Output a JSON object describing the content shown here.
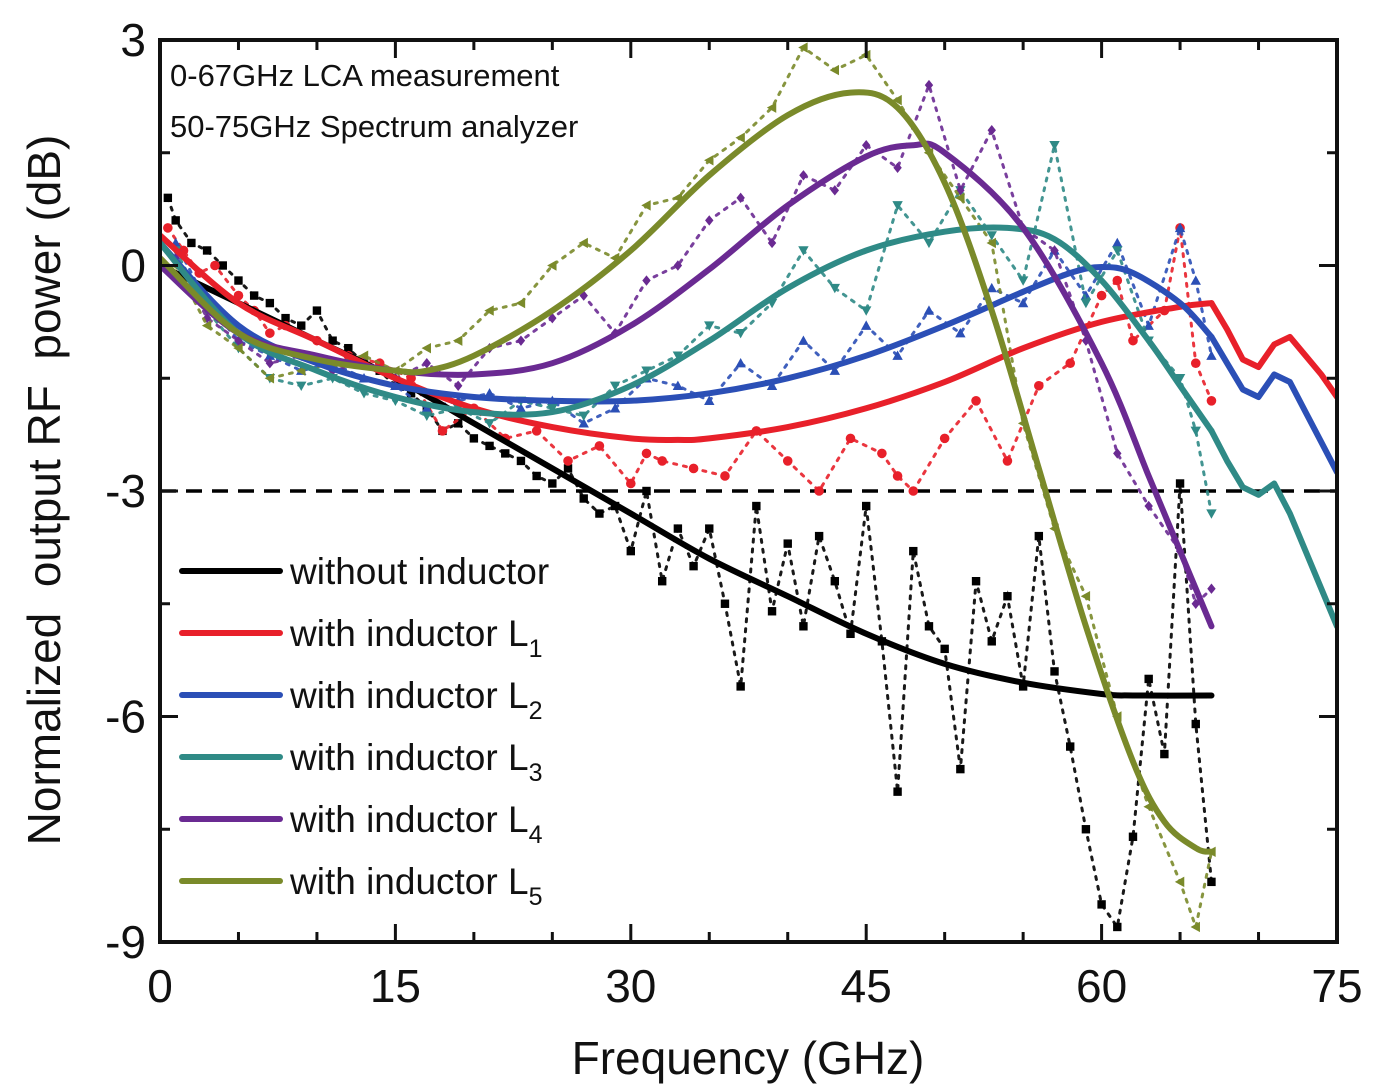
{
  "chart_data": {
    "type": "line",
    "title": "",
    "xlabel": "Frequency (GHz)",
    "ylabel": "Normalized  output RF  power (dB)",
    "xlim": [
      0,
      75
    ],
    "ylim": [
      -9,
      3
    ],
    "xticks": [
      0,
      15,
      30,
      45,
      60,
      75
    ],
    "xtick_labels": [
      "0",
      "15",
      "30",
      "45",
      "60",
      "75"
    ],
    "yticks": [
      3,
      0,
      -3,
      -6,
      -9
    ],
    "ytick_labels": [
      "3",
      "0",
      "-3",
      "-6",
      "-9"
    ],
    "x_minor_step": 5,
    "y_minor_step": 1.5,
    "grid": false,
    "annotations": [
      "0-67GHz LCA measurement",
      "50-75GHz Spectrum analyzer"
    ],
    "reference_line": {
      "y": -3,
      "style": "dashed",
      "color": "#000000"
    },
    "legend": {
      "position": "bottom-left",
      "entries": [
        {
          "label": "without inductor",
          "sub": ""
        },
        {
          "label": "with inductor L",
          "sub": "1"
        },
        {
          "label": "with inductor L",
          "sub": "2"
        },
        {
          "label": "with inductor L",
          "sub": "3"
        },
        {
          "label": "with inductor L",
          "sub": "4"
        },
        {
          "label": "with inductor L",
          "sub": "5"
        }
      ]
    },
    "series": [
      {
        "name": "without inductor",
        "color": "#000000",
        "marker": "square",
        "fit": {
          "x": [
            0,
            5,
            10,
            15,
            20,
            25,
            30,
            35,
            40,
            45,
            50,
            55,
            60,
            62,
            67
          ],
          "y": [
            0.0,
            -0.5,
            -1.0,
            -1.5,
            -2.1,
            -2.7,
            -3.3,
            -3.9,
            -4.4,
            -4.9,
            -5.3,
            -5.55,
            -5.7,
            -5.72,
            -5.72
          ]
        },
        "measured": {
          "x": [
            0.5,
            1,
            2,
            3,
            4,
            5,
            6,
            7,
            8,
            9,
            10,
            11,
            12,
            13,
            14,
            15,
            16,
            17,
            18,
            19,
            20,
            21,
            22,
            23,
            24,
            25,
            26,
            27,
            28,
            29,
            30,
            31,
            32,
            33,
            34,
            35,
            36,
            37,
            38,
            39,
            40,
            41,
            42,
            43,
            44,
            45,
            46,
            47,
            48,
            49,
            50,
            51,
            52,
            53,
            54,
            55,
            56,
            57,
            58,
            59,
            60,
            61,
            62,
            63,
            64,
            65,
            66,
            67
          ],
          "y": [
            0.9,
            0.6,
            0.3,
            0.2,
            0.0,
            -0.2,
            -0.4,
            -0.5,
            -0.7,
            -0.8,
            -0.6,
            -1.0,
            -1.1,
            -1.3,
            -1.4,
            -1.6,
            -1.7,
            -1.9,
            -2.2,
            -2.1,
            -2.3,
            -2.4,
            -2.5,
            -2.6,
            -2.8,
            -2.9,
            -2.7,
            -3.1,
            -3.3,
            -3.2,
            -3.8,
            -3.0,
            -4.2,
            -3.5,
            -4.0,
            -3.5,
            -4.5,
            -5.6,
            -3.2,
            -4.6,
            -3.7,
            -4.8,
            -3.6,
            -4.2,
            -4.9,
            -3.2,
            -5.0,
            -7.0,
            -3.8,
            -4.8,
            -5.1,
            -6.7,
            -4.2,
            -5.0,
            -4.4,
            -5.6,
            -3.6,
            -5.4,
            -6.4,
            -7.5,
            -8.5,
            -8.8,
            -7.6,
            -5.5,
            -6.5,
            -2.9,
            -6.1,
            -8.2
          ]
        }
      },
      {
        "name": "with inductor L1",
        "color": "#e8202a",
        "marker": "circle",
        "fit": {
          "x": [
            0,
            5,
            10,
            15,
            20,
            25,
            30,
            33,
            35,
            40,
            45,
            50,
            55,
            60,
            65,
            67
          ],
          "y": [
            0.4,
            -0.5,
            -1.0,
            -1.5,
            -1.9,
            -2.15,
            -2.3,
            -2.32,
            -2.3,
            -2.15,
            -1.9,
            -1.55,
            -1.1,
            -0.75,
            -0.55,
            -0.5
          ]
        },
        "extension": {
          "x": [
            67,
            68,
            69,
            70,
            71,
            72,
            73,
            74,
            75
          ],
          "y": [
            -0.5,
            -0.85,
            -1.25,
            -1.35,
            -1.05,
            -0.95,
            -1.2,
            -1.45,
            -1.75
          ]
        },
        "measured": {
          "x": [
            0.5,
            1.5,
            2.5,
            3.5,
            5,
            6,
            7,
            8,
            10,
            12,
            14,
            16,
            18,
            20,
            22,
            24,
            26,
            28,
            30,
            31,
            32,
            34,
            36,
            38,
            40,
            42,
            44,
            46,
            47,
            48,
            50,
            52,
            54,
            56,
            58,
            60,
            61,
            62,
            64,
            65,
            66,
            67
          ],
          "y": [
            0.5,
            0.2,
            -0.1,
            0.0,
            -0.4,
            -0.6,
            -0.9,
            -0.8,
            -1.0,
            -1.2,
            -1.3,
            -1.5,
            -2.2,
            -1.9,
            -2.3,
            -2.2,
            -2.6,
            -2.4,
            -2.9,
            -2.5,
            -2.6,
            -2.7,
            -2.8,
            -2.2,
            -2.6,
            -3.0,
            -2.3,
            -2.5,
            -2.8,
            -3.0,
            -2.3,
            -1.8,
            -2.6,
            -1.6,
            -1.3,
            -0.4,
            -0.2,
            -1.0,
            -0.6,
            0.5,
            -1.3,
            -1.8
          ]
        }
      },
      {
        "name": "with inductor L2",
        "color": "#2b4fb6",
        "marker": "triangle-up",
        "fit": {
          "x": [
            0,
            5,
            10,
            15,
            20,
            25,
            30,
            35,
            40,
            45,
            50,
            55,
            58,
            60,
            62,
            65,
            67
          ],
          "y": [
            0.3,
            -0.8,
            -1.3,
            -1.6,
            -1.75,
            -1.8,
            -1.8,
            -1.7,
            -1.5,
            -1.2,
            -0.8,
            -0.35,
            -0.1,
            -0.02,
            -0.1,
            -0.5,
            -0.95
          ]
        },
        "extension": {
          "x": [
            67,
            68,
            69,
            70,
            71,
            72,
            73,
            74,
            75
          ],
          "y": [
            -0.95,
            -1.3,
            -1.65,
            -1.75,
            -1.45,
            -1.55,
            -1.95,
            -2.35,
            -2.75
          ]
        },
        "measured": {
          "x": [
            1,
            3,
            5,
            7,
            9,
            11,
            13,
            15,
            17,
            19,
            21,
            23,
            25,
            27,
            29,
            31,
            33,
            35,
            37,
            39,
            41,
            43,
            45,
            47,
            49,
            51,
            53,
            55,
            57,
            59,
            61,
            63,
            65,
            66,
            67
          ],
          "y": [
            0.3,
            -0.5,
            -1.0,
            -1.2,
            -1.4,
            -1.3,
            -1.5,
            -1.6,
            -1.9,
            -1.8,
            -1.7,
            -1.9,
            -1.8,
            -2.1,
            -1.9,
            -1.5,
            -1.6,
            -1.8,
            -1.3,
            -1.6,
            -1.0,
            -1.4,
            -0.8,
            -1.2,
            -0.6,
            -0.9,
            -0.3,
            -0.5,
            0.2,
            -0.4,
            0.3,
            -0.8,
            0.5,
            -0.2,
            -1.2
          ]
        }
      },
      {
        "name": "with inductor L3",
        "color": "#2f8a86",
        "marker": "triangle-down",
        "fit": {
          "x": [
            0,
            5,
            10,
            15,
            20,
            25,
            30,
            35,
            40,
            45,
            50,
            54,
            57,
            60,
            63,
            65,
            67
          ],
          "y": [
            0.3,
            -0.9,
            -1.4,
            -1.75,
            -1.95,
            -1.95,
            -1.6,
            -1.0,
            -0.3,
            0.2,
            0.45,
            0.5,
            0.35,
            -0.2,
            -1.0,
            -1.6,
            -2.2
          ]
        },
        "extension": {
          "x": [
            67,
            68,
            69,
            70,
            71,
            72,
            73,
            74,
            75
          ],
          "y": [
            -2.2,
            -2.6,
            -2.95,
            -3.05,
            -2.9,
            -3.3,
            -3.8,
            -4.3,
            -4.8
          ]
        },
        "measured": {
          "x": [
            1,
            3,
            5,
            7,
            9,
            11,
            13,
            15,
            17,
            19,
            21,
            23,
            25,
            27,
            29,
            31,
            33,
            35,
            37,
            39,
            41,
            43,
            45,
            47,
            49,
            51,
            53,
            55,
            57,
            59,
            61,
            63,
            65,
            66,
            67
          ],
          "y": [
            0.2,
            -0.6,
            -1.1,
            -1.5,
            -1.6,
            -1.5,
            -1.7,
            -1.8,
            -2.0,
            -1.9,
            -2.1,
            -1.8,
            -1.9,
            -2.0,
            -1.6,
            -1.4,
            -1.2,
            -0.8,
            -0.9,
            -0.5,
            0.2,
            -0.3,
            -0.6,
            0.8,
            0.3,
            1.0,
            0.4,
            -0.2,
            1.6,
            -0.5,
            0.2,
            -1.0,
            -1.5,
            -2.2,
            -3.3
          ]
        }
      },
      {
        "name": "with inductor L4",
        "color": "#6a2a92",
        "marker": "diamond",
        "fit": {
          "x": [
            0,
            5,
            10,
            15,
            20,
            25,
            30,
            35,
            40,
            45,
            48,
            50,
            55,
            60,
            63,
            65,
            67
          ],
          "y": [
            0.0,
            -0.9,
            -1.2,
            -1.4,
            -1.45,
            -1.3,
            -0.8,
            -0.05,
            0.8,
            1.45,
            1.6,
            1.5,
            0.5,
            -1.3,
            -2.8,
            -3.8,
            -4.8
          ]
        },
        "measured": {
          "x": [
            1,
            3,
            5,
            7,
            9,
            11,
            13,
            15,
            17,
            19,
            21,
            23,
            25,
            27,
            29,
            31,
            33,
            35,
            37,
            39,
            41,
            43,
            45,
            47,
            49,
            51,
            53,
            55,
            57,
            59,
            61,
            63,
            65,
            66,
            67
          ],
          "y": [
            0.1,
            -0.7,
            -1.0,
            -1.3,
            -1.2,
            -1.4,
            -1.3,
            -1.5,
            -1.3,
            -1.6,
            -1.1,
            -1.0,
            -0.7,
            -0.4,
            -0.9,
            -0.2,
            0.0,
            0.6,
            0.9,
            0.3,
            1.2,
            1.0,
            1.6,
            1.3,
            2.4,
            1.0,
            1.8,
            0.5,
            0.2,
            -1.0,
            -2.5,
            -3.2,
            -3.8,
            -4.5,
            -4.3
          ]
        }
      },
      {
        "name": "with inductor L5",
        "color": "#7a8a2a",
        "marker": "triangle-left",
        "fit": {
          "x": [
            0,
            5,
            10,
            15,
            17,
            20,
            25,
            30,
            35,
            40,
            44,
            47,
            50,
            53,
            56,
            59,
            62,
            64,
            66,
            67
          ],
          "y": [
            0.1,
            -0.9,
            -1.25,
            -1.4,
            -1.4,
            -1.2,
            -0.6,
            0.2,
            1.2,
            2.0,
            2.3,
            2.1,
            1.1,
            -0.6,
            -2.7,
            -4.8,
            -6.6,
            -7.4,
            -7.75,
            -7.8
          ]
        },
        "measured": {
          "x": [
            1,
            3,
            5,
            7,
            9,
            11,
            13,
            15,
            17,
            19,
            21,
            23,
            25,
            27,
            29,
            31,
            33,
            35,
            37,
            39,
            41,
            43,
            45,
            47,
            49,
            51,
            53,
            55,
            57,
            59,
            61,
            63,
            65,
            66,
            67
          ],
          "y": [
            0.0,
            -0.8,
            -1.1,
            -1.5,
            -1.4,
            -1.3,
            -1.2,
            -1.4,
            -1.1,
            -1.0,
            -0.6,
            -0.5,
            0.0,
            0.3,
            0.1,
            0.8,
            0.9,
            1.4,
            1.7,
            2.1,
            2.9,
            2.6,
            2.8,
            2.2,
            1.5,
            0.9,
            0.3,
            -2.1,
            -3.5,
            -4.4,
            -6.0,
            -7.2,
            -8.2,
            -8.8,
            -7.8
          ]
        }
      }
    ]
  }
}
